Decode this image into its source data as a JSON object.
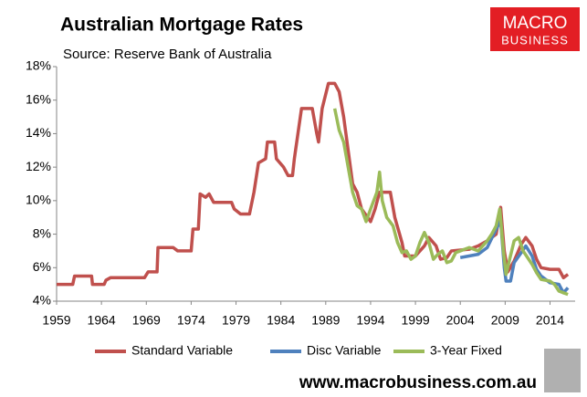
{
  "chart_data": {
    "type": "line",
    "title": "Australian Mortgage Rates",
    "subtitle": "Source: Reserve Bank of Australia",
    "logo_text": [
      "MACRO",
      "BUSINESS"
    ],
    "footer": "www.macrobusiness.com.au",
    "xlim": [
      1959,
      2016.8
    ],
    "xticks": [
      1959,
      1964,
      1969,
      1974,
      1979,
      1984,
      1989,
      1994,
      1999,
      2004,
      2009,
      2014
    ],
    "ylim": [
      4,
      18
    ],
    "yticks": [
      {
        "value": 4,
        "label": "4%"
      },
      {
        "value": 6,
        "label": "6%"
      },
      {
        "value": 8,
        "label": "8%"
      },
      {
        "value": 10,
        "label": "10%"
      },
      {
        "value": 12,
        "label": "12%"
      },
      {
        "value": 14,
        "label": "14%"
      },
      {
        "value": 16,
        "label": "16%"
      },
      {
        "value": 18,
        "label": "18%"
      }
    ],
    "grid": false,
    "legend": "bottom",
    "series": [
      {
        "name": "Standard Variable",
        "color": "#c0504d",
        "x": [
          1959,
          1960.8,
          1961,
          1962.9,
          1963,
          1964.3,
          1964.5,
          1965,
          1968.8,
          1969.2,
          1970.2,
          1970.3,
          1972,
          1972.5,
          1974,
          1974.2,
          1974.8,
          1975,
          1975.6,
          1976,
          1976.5,
          1978.5,
          1978.8,
          1979.5,
          1980.5,
          1981,
          1981.5,
          1982.3,
          1982.5,
          1983.3,
          1983.5,
          1984.3,
          1984.8,
          1985.3,
          1985.5,
          1986.3,
          1987.5,
          1988,
          1988.2,
          1988.6,
          1989.3,
          1990,
          1990.5,
          1991,
          1991.5,
          1992,
          1992.5,
          1993,
          1994,
          1994.5,
          1995,
          1996.2,
          1996.7,
          1997.5,
          1997.8,
          1999,
          2000,
          2000.5,
          2001.3,
          2001.8,
          2002.5,
          2003,
          2005,
          2006,
          2007,
          2008,
          2008.5,
          2008.9,
          2009.3,
          2010,
          2010.8,
          2011.3,
          2012,
          2012.5,
          2013,
          2014,
          2015,
          2015.5,
          2016
        ],
        "values": [
          5.0,
          5.0,
          5.5,
          5.5,
          5.0,
          5.0,
          5.25,
          5.4,
          5.4,
          5.75,
          5.75,
          7.2,
          7.2,
          7.0,
          7.0,
          8.3,
          8.3,
          10.4,
          10.2,
          10.4,
          9.9,
          9.9,
          9.5,
          9.2,
          9.2,
          10.5,
          12.25,
          12.5,
          13.5,
          13.5,
          12.5,
          12.0,
          11.5,
          11.5,
          12.5,
          15.5,
          15.5,
          14.0,
          13.5,
          15.5,
          17.0,
          17.0,
          16.5,
          15.0,
          13.0,
          11.0,
          10.5,
          9.5,
          8.75,
          9.5,
          10.5,
          10.5,
          9.0,
          7.5,
          6.7,
          6.7,
          7.3,
          7.8,
          7.3,
          6.5,
          6.6,
          7.0,
          7.1,
          7.3,
          7.6,
          8.0,
          9.6,
          7.0,
          5.75,
          6.4,
          7.4,
          7.8,
          7.3,
          6.5,
          6.0,
          5.9,
          5.9,
          5.4,
          5.6
        ]
      },
      {
        "name": "Disc Variable",
        "color": "#4f81bd",
        "x": [
          2004,
          2006,
          2007,
          2008,
          2008.5,
          2008.9,
          2009.1,
          2009.6,
          2010,
          2010.8,
          2011.3,
          2012,
          2012.5,
          2013,
          2014,
          2015,
          2015.5,
          2016
        ],
        "values": [
          6.6,
          6.8,
          7.2,
          8.3,
          8.8,
          6.0,
          5.2,
          5.2,
          6.3,
          6.9,
          7.3,
          6.7,
          5.9,
          5.5,
          5.1,
          5.0,
          4.5,
          4.8
        ]
      },
      {
        "name": "3-Year Fixed",
        "color": "#9bbb59",
        "x": [
          1990,
          1990.5,
          1991,
          1991.5,
          1992,
          1992.5,
          1993,
          1993.5,
          1994,
          1994.7,
          1995,
          1995.3,
          1995.8,
          1996.5,
          1997,
          1997.5,
          1998,
          1998.5,
          1999,
          1999.5,
          2000,
          2000.5,
          2001,
          2001.5,
          2002,
          2002.5,
          2003,
          2003.5,
          2004,
          2005,
          2006,
          2007,
          2007.5,
          2008,
          2008.4,
          2008.8,
          2009.1,
          2009.5,
          2010,
          2010.5,
          2011,
          2011.5,
          2012,
          2012.5,
          2013,
          2014,
          2014.5,
          2015,
          2015.5,
          2016
        ],
        "values": [
          15.5,
          14.2,
          13.5,
          12.0,
          10.5,
          9.7,
          9.5,
          8.75,
          9.5,
          10.5,
          11.7,
          10.0,
          9.0,
          8.5,
          7.5,
          6.9,
          7.0,
          6.5,
          6.7,
          7.5,
          8.1,
          7.5,
          6.5,
          6.8,
          7.0,
          6.3,
          6.4,
          6.9,
          7.0,
          7.2,
          7.0,
          7.6,
          8.0,
          8.5,
          9.5,
          7.0,
          5.6,
          6.5,
          7.6,
          7.8,
          7.0,
          6.6,
          6.2,
          5.7,
          5.3,
          5.2,
          5.0,
          4.6,
          4.5,
          4.4
        ]
      }
    ]
  }
}
